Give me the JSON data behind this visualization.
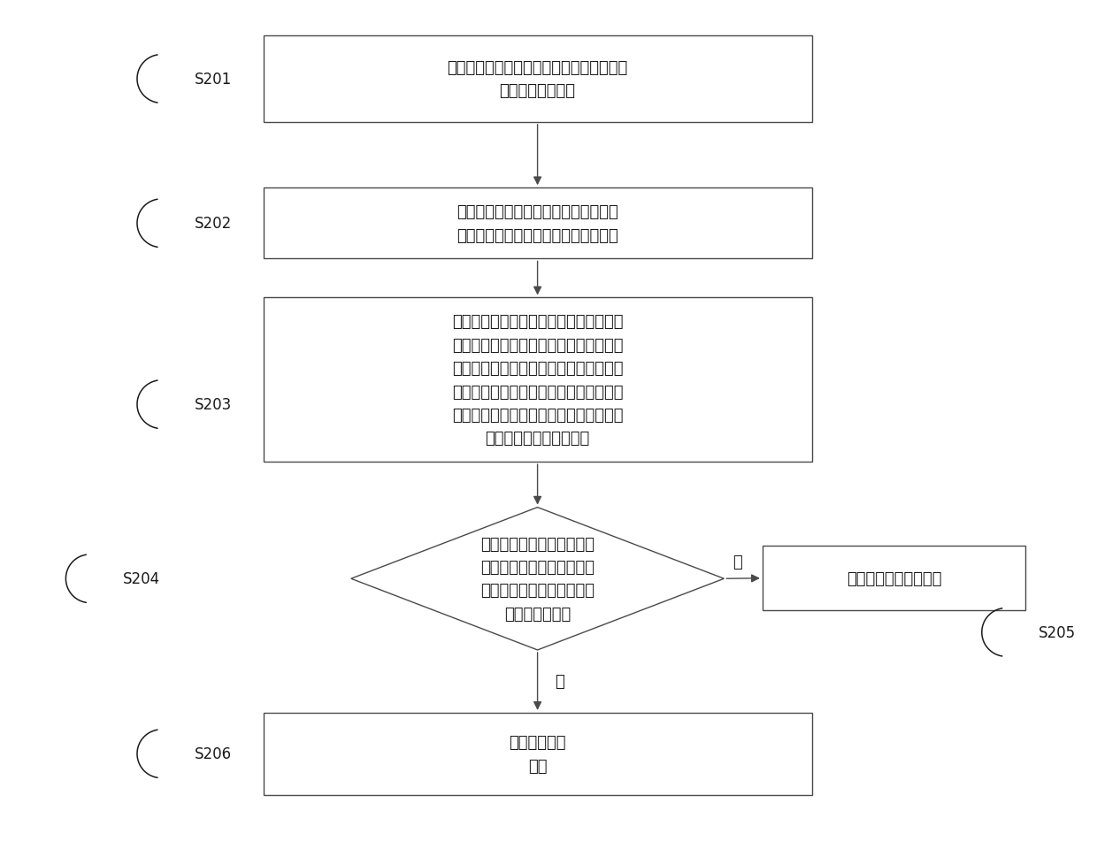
{
  "bg_color": "#ffffff",
  "box_color": "#ffffff",
  "box_edge_color": "#4a4a4a",
  "text_color": "#1a1a1a",
  "arrow_color": "#4a4a4a",
  "label_color": "#1a1a1a",
  "s201_text": "获取色卡的正投影图像以及变压器呼吸器当\n前所处环境的图像",
  "s202_text": "根据图像分割算法，将待检测特征体的\n图像分割为不同颜色度的第二颜色区域",
  "s203_text": "根据所述色卡的正投影图像的每个所述第\n一颜色区域的颜色度、每个所述第一颜色\n区域与所述第一定位标记的位置关系以及\n所述待检测特征体的每个第二颜色区域的\n图像解析所述待检测特征体的每个第二颜\n色区域的图像图像颜色度",
  "s204_text": "判断解析后的所述待检测特\n征体的每个第二颜色区域的\n图像颜色度与预存储的标准\n颜色度是否一致",
  "s205_text": "生成运行正常提示信息",
  "s206_text": "生成故障提示\n信息",
  "yes_label": "是",
  "no_label": "否",
  "font_size_main": 13,
  "font_size_label": 12
}
